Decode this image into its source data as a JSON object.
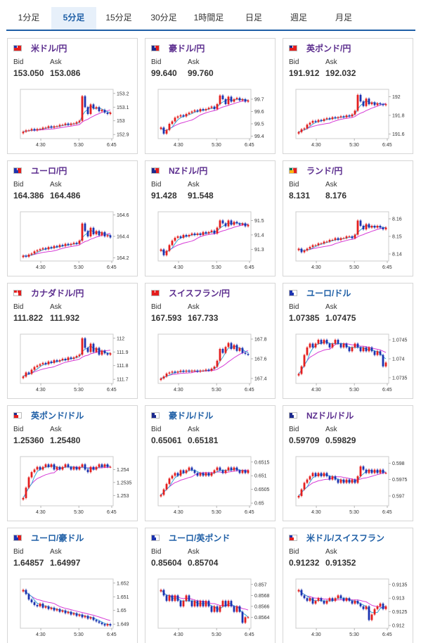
{
  "tabs": [
    {
      "label": "1分足",
      "active": false
    },
    {
      "label": "5分足",
      "active": true
    },
    {
      "label": "15分足",
      "active": false
    },
    {
      "label": "30分足",
      "active": false
    },
    {
      "label": "1時間足",
      "active": false
    },
    {
      "label": "日足",
      "active": false
    },
    {
      "label": "週足",
      "active": false
    },
    {
      "label": "月足",
      "active": false
    }
  ],
  "labels": {
    "bid": "Bid",
    "ask": "Ask"
  },
  "colors": {
    "up": "#e41e1e",
    "down": "#1c33b0",
    "ma1": "#36a7d6",
    "ma2": "#d63bd6",
    "title_purple": "#5b2d8e",
    "title_blue": "#1f5fa6"
  },
  "cards": [
    {
      "name": "米ドル/円",
      "flag": "us-jp",
      "title_color": "purple",
      "bid": "153.050",
      "ask": "153.086",
      "chart_data": {
        "type": "candlestick",
        "x_ticks": [
          "4:30",
          "5:30",
          "6:45"
        ],
        "y_ticks": [
          "153.2",
          "153.1",
          "153",
          "152.9"
        ],
        "ylim": [
          152.87,
          153.23
        ],
        "close": [
          152.92,
          152.93,
          152.93,
          152.94,
          152.93,
          152.94,
          152.94,
          152.95,
          152.95,
          152.96,
          152.95,
          152.96,
          152.96,
          152.97,
          152.97,
          152.98,
          152.97,
          152.98,
          152.98,
          152.99,
          153.0,
          153.18,
          153.1,
          153.05,
          153.12,
          153.09,
          153.1,
          153.07,
          153.08,
          153.06,
          153.05,
          153.06
        ]
      }
    },
    {
      "name": "豪ドル/円",
      "flag": "au-jp",
      "title_color": "purple",
      "bid": "99.640",
      "ask": "99.760",
      "chart_data": {
        "type": "candlestick",
        "x_ticks": [
          "4:30",
          "5:30",
          "6:45"
        ],
        "y_ticks": [
          "99.7",
          "99.6",
          "99.5",
          "99.4"
        ],
        "ylim": [
          99.38,
          99.78
        ],
        "close": [
          99.47,
          99.42,
          99.45,
          99.5,
          99.52,
          99.55,
          99.56,
          99.57,
          99.56,
          99.58,
          99.59,
          99.6,
          99.61,
          99.6,
          99.62,
          99.61,
          99.62,
          99.63,
          99.64,
          99.62,
          99.66,
          99.73,
          99.7,
          99.66,
          99.72,
          99.68,
          99.7,
          99.71,
          99.69,
          99.7,
          99.68,
          99.69
        ]
      }
    },
    {
      "name": "英ポンド/円",
      "flag": "gb-jp",
      "title_color": "purple",
      "bid": "191.912",
      "ask": "192.032",
      "chart_data": {
        "type": "candlestick",
        "x_ticks": [
          "4:30",
          "5:30",
          "6:45"
        ],
        "y_ticks": [
          "192",
          "191.8",
          "191.6"
        ],
        "ylim": [
          191.55,
          192.08
        ],
        "close": [
          191.62,
          191.65,
          191.66,
          191.7,
          191.72,
          191.74,
          191.73,
          191.75,
          191.74,
          191.76,
          191.77,
          191.76,
          191.78,
          191.77,
          191.78,
          191.79,
          191.78,
          191.8,
          191.79,
          191.81,
          191.85,
          192.02,
          191.95,
          191.9,
          191.98,
          191.92,
          191.94,
          191.91,
          191.93,
          191.92,
          191.91,
          191.92
        ]
      }
    },
    {
      "name": "ユーロ/円",
      "flag": "eu-jp",
      "title_color": "purple",
      "bid": "164.386",
      "ask": "164.486",
      "chart_data": {
        "type": "candlestick",
        "x_ticks": [
          "4:30",
          "5:30",
          "6:45"
        ],
        "y_ticks": [
          "164.6",
          "164.4",
          "164.2"
        ],
        "ylim": [
          164.17,
          164.63
        ],
        "close": [
          164.22,
          164.21,
          164.23,
          164.24,
          164.26,
          164.27,
          164.28,
          164.29,
          164.28,
          164.3,
          164.29,
          164.31,
          164.3,
          164.32,
          164.31,
          164.33,
          164.32,
          164.33,
          164.34,
          164.33,
          164.36,
          164.52,
          164.45,
          164.4,
          164.48,
          164.42,
          164.45,
          164.41,
          164.44,
          164.4,
          164.41,
          164.39
        ]
      }
    },
    {
      "name": "NZドル/円",
      "flag": "nz-jp",
      "title_color": "purple",
      "bid": "91.428",
      "ask": "91.548",
      "chart_data": {
        "type": "candlestick",
        "x_ticks": [
          "4:30",
          "5:30",
          "6:45"
        ],
        "y_ticks": [
          "91.5",
          "91.4",
          "91.3"
        ],
        "ylim": [
          91.22,
          91.56
        ],
        "close": [
          91.3,
          91.26,
          91.29,
          91.33,
          91.36,
          91.38,
          91.39,
          91.38,
          91.4,
          91.39,
          91.4,
          91.41,
          91.4,
          91.41,
          91.4,
          91.42,
          91.41,
          91.42,
          91.43,
          91.41,
          91.45,
          91.5,
          91.48,
          91.46,
          91.5,
          91.47,
          91.49,
          91.48,
          91.47,
          91.48,
          91.46,
          91.47
        ]
      }
    },
    {
      "name": "ランド/円",
      "flag": "za-jp",
      "title_color": "purple",
      "bid": "8.131",
      "ask": "8.176",
      "chart_data": {
        "type": "candlestick",
        "x_ticks": [
          "4:30",
          "5:30",
          "6:45"
        ],
        "y_ticks": [
          "8.16",
          "8.15",
          "8.14"
        ],
        "ylim": [
          8.136,
          8.164
        ],
        "close": [
          8.143,
          8.141,
          8.142,
          8.143,
          8.144,
          8.145,
          8.145,
          8.146,
          8.146,
          8.147,
          8.147,
          8.148,
          8.148,
          8.149,
          8.148,
          8.149,
          8.149,
          8.15,
          8.15,
          8.149,
          8.151,
          8.159,
          8.156,
          8.154,
          8.157,
          8.155,
          8.156,
          8.155,
          8.156,
          8.155,
          8.154,
          8.155
        ]
      }
    },
    {
      "name": "カナダドル/円",
      "flag": "ca-jp",
      "title_color": "purple",
      "bid": "111.822",
      "ask": "111.932",
      "chart_data": {
        "type": "candlestick",
        "x_ticks": [
          "4:30",
          "5:30",
          "6:45"
        ],
        "y_ticks": [
          "112",
          "111.9",
          "111.8",
          "111.7"
        ],
        "ylim": [
          111.67,
          112.03
        ],
        "close": [
          111.72,
          111.75,
          111.74,
          111.77,
          111.79,
          111.8,
          111.81,
          111.82,
          111.81,
          111.83,
          111.82,
          111.84,
          111.83,
          111.84,
          111.85,
          111.84,
          111.86,
          111.85,
          111.86,
          111.87,
          111.88,
          112.0,
          111.93,
          111.9,
          111.96,
          111.9,
          111.93,
          111.88,
          111.91,
          111.89,
          111.88,
          111.89
        ]
      }
    },
    {
      "name": "スイスフラン/円",
      "flag": "ch-jp",
      "title_color": "purple",
      "bid": "167.593",
      "ask": "167.733",
      "chart_data": {
        "type": "candlestick",
        "x_ticks": [
          "4:30",
          "5:30",
          "6:45"
        ],
        "y_ticks": [
          "167.8",
          "167.6",
          "167.4"
        ],
        "ylim": [
          167.35,
          167.85
        ],
        "close": [
          167.4,
          167.42,
          167.45,
          167.46,
          167.47,
          167.46,
          167.47,
          167.48,
          167.47,
          167.48,
          167.47,
          167.48,
          167.48,
          167.47,
          167.48,
          167.48,
          167.49,
          167.48,
          167.5,
          167.52,
          167.58,
          167.7,
          167.66,
          167.72,
          167.76,
          167.7,
          167.74,
          167.68,
          167.71,
          167.66,
          167.65,
          167.64
        ]
      }
    },
    {
      "name": "ユーロ/ドル",
      "flag": "eu-us",
      "title_color": "blue",
      "bid": "1.07385",
      "ask": "1.07475",
      "chart_data": {
        "type": "candlestick",
        "x_ticks": [
          "4:30",
          "5:30",
          "6:45"
        ],
        "y_ticks": [
          "1.0745",
          "1.074",
          "1.0735"
        ],
        "ylim": [
          1.07335,
          1.07465
        ],
        "close": [
          1.0736,
          1.0738,
          1.0741,
          1.0743,
          1.0744,
          1.0743,
          1.0744,
          1.0745,
          1.0744,
          1.0745,
          1.0744,
          1.0743,
          1.0744,
          1.0745,
          1.0744,
          1.0743,
          1.0744,
          1.0743,
          1.0742,
          1.0743,
          1.0744,
          1.0743,
          1.0742,
          1.0743,
          1.0742,
          1.0743,
          1.0742,
          1.0741,
          1.0742,
          1.0741,
          1.0738,
          1.0739
        ]
      }
    },
    {
      "name": "英ポンド/ドル",
      "flag": "gb-us",
      "title_color": "blue",
      "bid": "1.25360",
      "ask": "1.25480",
      "chart_data": {
        "type": "candlestick",
        "x_ticks": [
          "4:30",
          "5:30",
          "6:45"
        ],
        "y_ticks": [
          "1.254",
          "1.2535",
          "1.253"
        ],
        "ylim": [
          1.2526,
          1.2545
        ],
        "close": [
          1.2529,
          1.2533,
          1.2537,
          1.2539,
          1.254,
          1.2541,
          1.254,
          1.2541,
          1.2542,
          1.2541,
          1.2542,
          1.254,
          1.2541,
          1.254,
          1.2541,
          1.2542,
          1.2541,
          1.254,
          1.2541,
          1.254,
          1.2541,
          1.2542,
          1.254,
          1.2539,
          1.2541,
          1.254,
          1.2541,
          1.2542,
          1.2541,
          1.2542,
          1.2541,
          1.2541
        ]
      }
    },
    {
      "name": "豪ドル/ドル",
      "flag": "au-us",
      "title_color": "blue",
      "bid": "0.65061",
      "ask": "0.65181",
      "chart_data": {
        "type": "candlestick",
        "x_ticks": [
          "4:30",
          "5:30",
          "6:45"
        ],
        "y_ticks": [
          "0.6515",
          "0.651",
          "0.6505",
          "0.65"
        ],
        "ylim": [
          0.6499,
          0.6517
        ],
        "close": [
          0.6503,
          0.6505,
          0.6507,
          0.6509,
          0.651,
          0.6511,
          0.651,
          0.6512,
          0.6511,
          0.6512,
          0.6513,
          0.6512,
          0.6511,
          0.651,
          0.6511,
          0.651,
          0.6511,
          0.651,
          0.6511,
          0.6512,
          0.6513,
          0.6512,
          0.6511,
          0.6512,
          0.6513,
          0.6512,
          0.6513,
          0.6512,
          0.6511,
          0.6512,
          0.6511,
          0.6512
        ]
      }
    },
    {
      "name": "NZドル/ドル",
      "flag": "nz-us",
      "title_color": "purple",
      "bid": "0.59709",
      "ask": "0.59829",
      "chart_data": {
        "type": "candlestick",
        "x_ticks": [
          "4:30",
          "5:30",
          "6:45"
        ],
        "y_ticks": [
          "0.598",
          "0.5975",
          "0.597"
        ],
        "ylim": [
          0.5967,
          0.5982
        ],
        "close": [
          0.597,
          0.5972,
          0.5974,
          0.5975,
          0.5976,
          0.5977,
          0.5976,
          0.5977,
          0.5976,
          0.5977,
          0.5976,
          0.5975,
          0.5976,
          0.5975,
          0.5974,
          0.5975,
          0.5974,
          0.5975,
          0.5974,
          0.5975,
          0.5974,
          0.5976,
          0.5979,
          0.5978,
          0.5977,
          0.5978,
          0.5977,
          0.5978,
          0.5977,
          0.5978,
          0.5977,
          0.5977
        ]
      }
    },
    {
      "name": "ユーロ/豪ドル",
      "flag": "eu-au",
      "title_color": "blue",
      "bid": "1.64857",
      "ask": "1.64997",
      "chart_data": {
        "type": "candlestick",
        "x_ticks": [
          "4:30",
          "5:30",
          "6:45"
        ],
        "y_ticks": [
          "1.652",
          "1.651",
          "1.65",
          "1.649"
        ],
        "ylim": [
          1.6487,
          1.6523
        ],
        "close": [
          1.6515,
          1.6512,
          1.6508,
          1.6506,
          1.6504,
          1.6503,
          1.6505,
          1.6502,
          1.6503,
          1.6501,
          1.6502,
          1.65,
          1.6501,
          1.6499,
          1.65,
          1.6498,
          1.6499,
          1.6497,
          1.6498,
          1.6496,
          1.6497,
          1.6495,
          1.6496,
          1.6494,
          1.6495,
          1.6493,
          1.6492,
          1.6491,
          1.649,
          1.6489,
          1.649,
          1.6489
        ]
      }
    },
    {
      "name": "ユーロ/英ポンド",
      "flag": "eu-gb",
      "title_color": "blue",
      "bid": "0.85604",
      "ask": "0.85704",
      "chart_data": {
        "type": "candlestick",
        "x_ticks": [
          "4:30",
          "5:30",
          "6:45"
        ],
        "y_ticks": [
          "0.857",
          "0.8568",
          "0.8566",
          "0.8564"
        ],
        "ylim": [
          0.8562,
          0.8571
        ],
        "close": [
          0.8569,
          0.8568,
          0.8567,
          0.8568,
          0.8567,
          0.8568,
          0.8567,
          0.8566,
          0.8567,
          0.8568,
          0.8567,
          0.8566,
          0.8567,
          0.8566,
          0.8567,
          0.8566,
          0.8567,
          0.8566,
          0.8565,
          0.8566,
          0.8565,
          0.8566,
          0.8567,
          0.8566,
          0.8567,
          0.8566,
          0.8565,
          0.8566,
          0.8565,
          0.8563,
          0.8564,
          0.8564
        ]
      }
    },
    {
      "name": "米ドル/スイスフラン",
      "flag": "us-ch",
      "title_color": "blue",
      "bid": "0.91232",
      "ask": "0.91352",
      "chart_data": {
        "type": "candlestick",
        "x_ticks": [
          "4:30",
          "5:30",
          "6:45"
        ],
        "y_ticks": [
          "0.9135",
          "0.913",
          "0.9125",
          "0.912"
        ],
        "ylim": [
          0.9119,
          0.9137
        ],
        "close": [
          0.9133,
          0.9131,
          0.913,
          0.9129,
          0.913,
          0.9128,
          0.9129,
          0.913,
          0.9129,
          0.9128,
          0.9129,
          0.913,
          0.9129,
          0.913,
          0.9131,
          0.913,
          0.9129,
          0.913,
          0.9129,
          0.9128,
          0.9129,
          0.9128,
          0.9127,
          0.9126,
          0.9127,
          0.9122,
          0.9124,
          0.9126,
          0.9127,
          0.9128,
          0.9126,
          0.9127
        ]
      }
    }
  ]
}
